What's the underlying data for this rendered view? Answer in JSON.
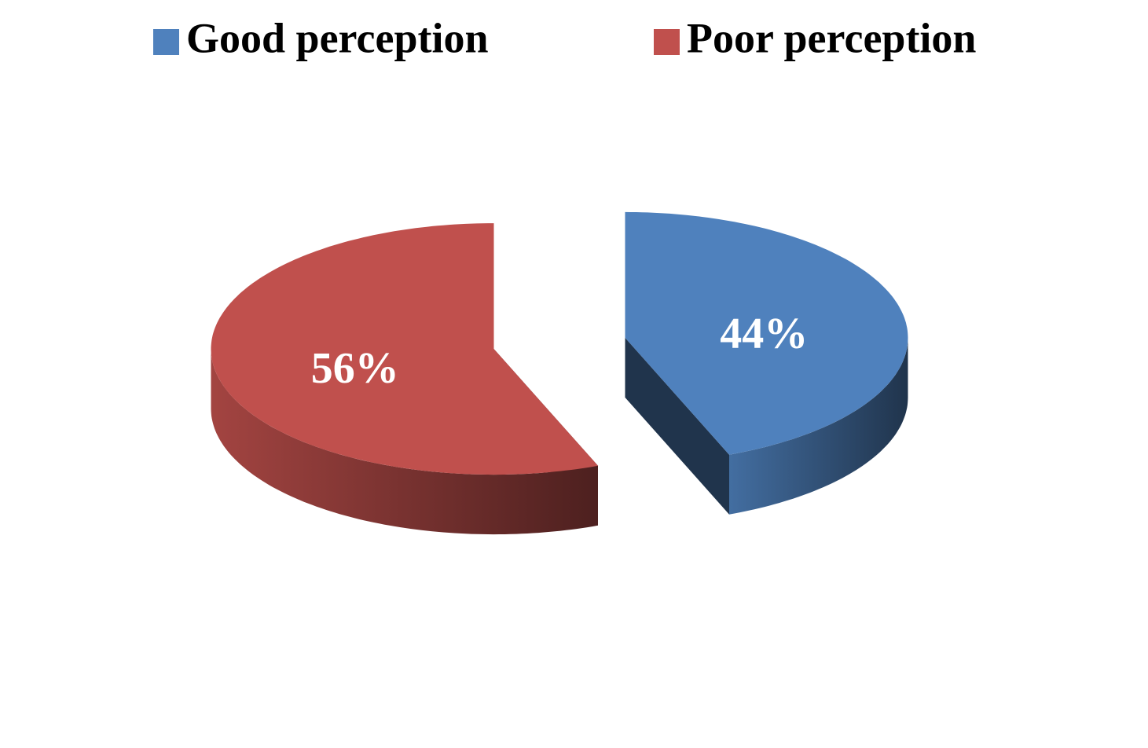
{
  "chart_data": {
    "type": "pie3d",
    "categories": [
      "Good perception",
      "Poor perception"
    ],
    "values": [
      44,
      56
    ],
    "value_labels": [
      "44%",
      "56%"
    ],
    "colors": [
      "#4f81bd",
      "#c0504d"
    ],
    "legend": "top"
  }
}
